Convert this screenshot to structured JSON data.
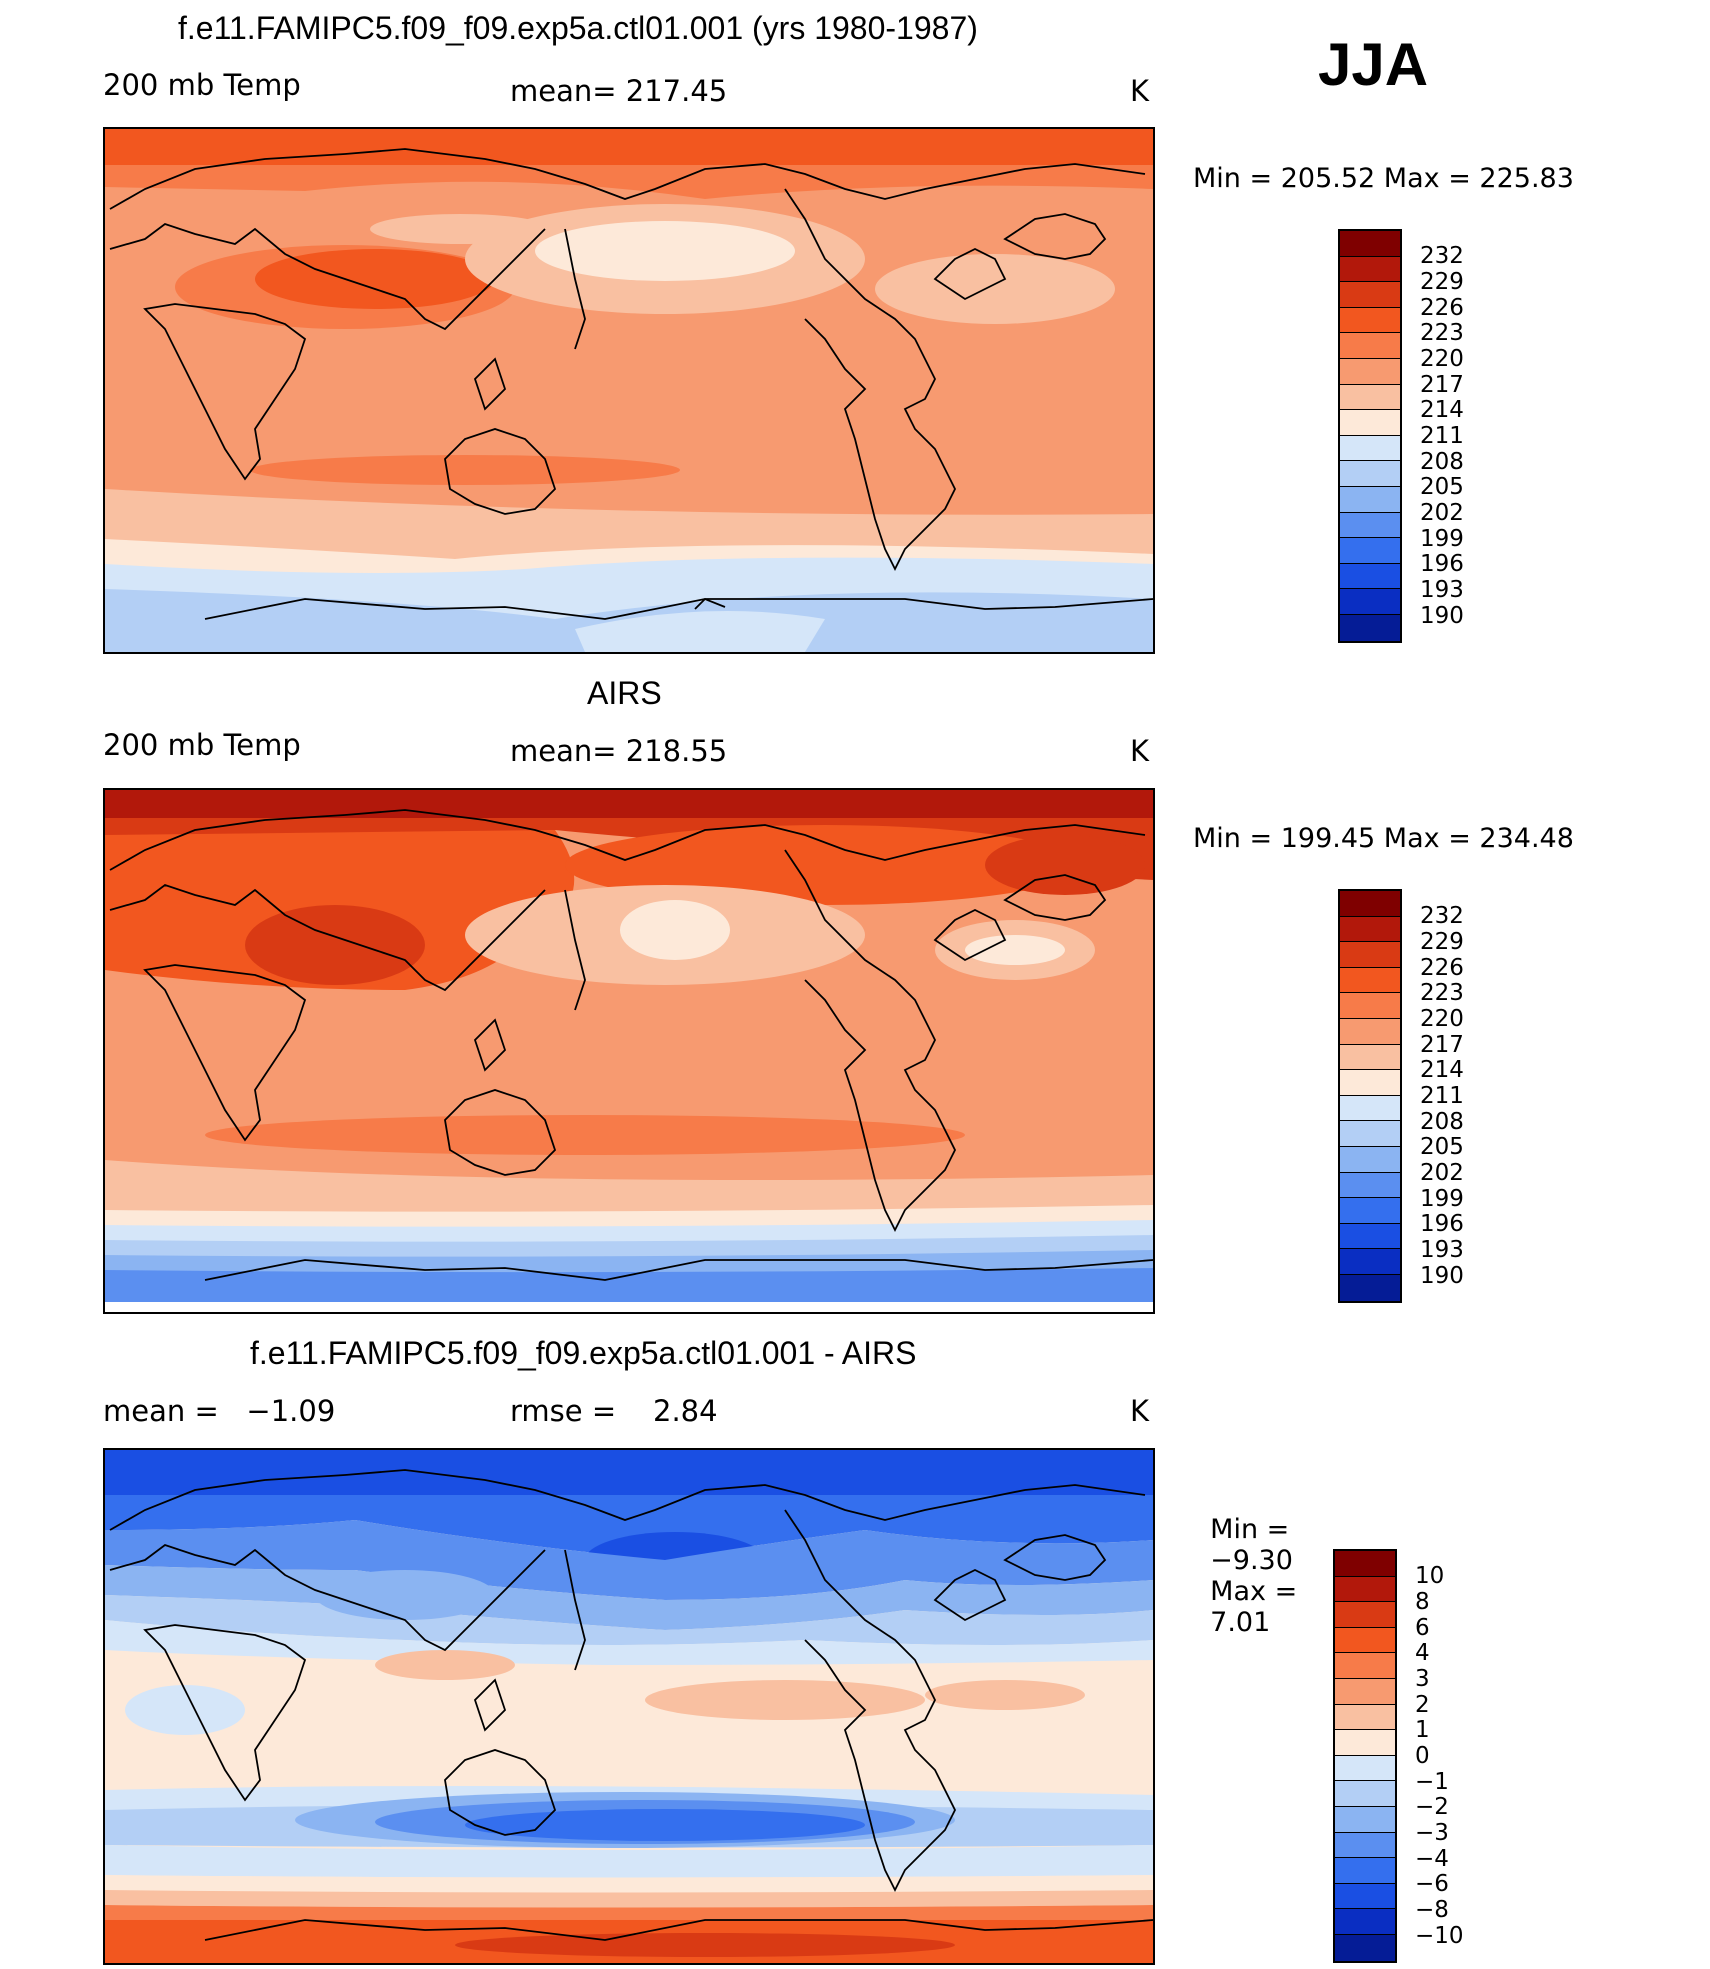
{
  "season": "JJA",
  "panels": [
    {
      "id": "model",
      "title": "f.e11.FAMIPC5.f09_f09.exp5a.ctl01.001 (yrs 1980-1987)",
      "left_label": "200 mb Temp",
      "center_label": "mean= 217.45",
      "units": "K",
      "min_label": "Min =",
      "min": "205.52",
      "max_label": "Max =",
      "max": "225.83",
      "colorbar": [
        "232",
        "229",
        "226",
        "223",
        "220",
        "217",
        "214",
        "211",
        "208",
        "205",
        "202",
        "199",
        "196",
        "193",
        "190"
      ]
    },
    {
      "id": "obs",
      "title": "AIRS",
      "left_label": "200 mb Temp",
      "center_label": "mean= 218.55",
      "units": "K",
      "min_label": "Min =",
      "min": "199.45",
      "max_label": "Max =",
      "max": "234.48",
      "colorbar": [
        "232",
        "229",
        "226",
        "223",
        "220",
        "217",
        "214",
        "211",
        "208",
        "205",
        "202",
        "199",
        "196",
        "193",
        "190"
      ]
    },
    {
      "id": "diff",
      "title": "f.e11.FAMIPC5.f09_f09.exp5a.ctl01.001 - AIRS",
      "left_label": "mean =   −1.09",
      "center_label": "rmse =    2.84",
      "units": "K",
      "min_label": "Min =",
      "min": "−9.30",
      "max_label": "Max =",
      "max": "7.01",
      "colorbar": [
        "10",
        "8",
        "6",
        "4",
        "3",
        "2",
        "1",
        "0",
        "−1",
        "−2",
        "−3",
        "−4",
        "−6",
        "−8",
        "−10"
      ]
    }
  ],
  "palette": {
    "c16": "#7f0000",
    "c15": "#b2180b",
    "c14": "#d93a14",
    "c13": "#f2571f",
    "c12": "#f77b49",
    "c11": "#f79a70",
    "c10": "#f9c0a1",
    "c9": "#fde9d9",
    "c8": "#d5e6f9",
    "c7": "#b3cff5",
    "c6": "#8bb4f2",
    "c5": "#5b8ff0",
    "c4": "#346fee",
    "c3": "#1a4fe3",
    "c2": "#0a2ec2",
    "c1": "#051c96",
    "c0": "#000f6b"
  }
}
